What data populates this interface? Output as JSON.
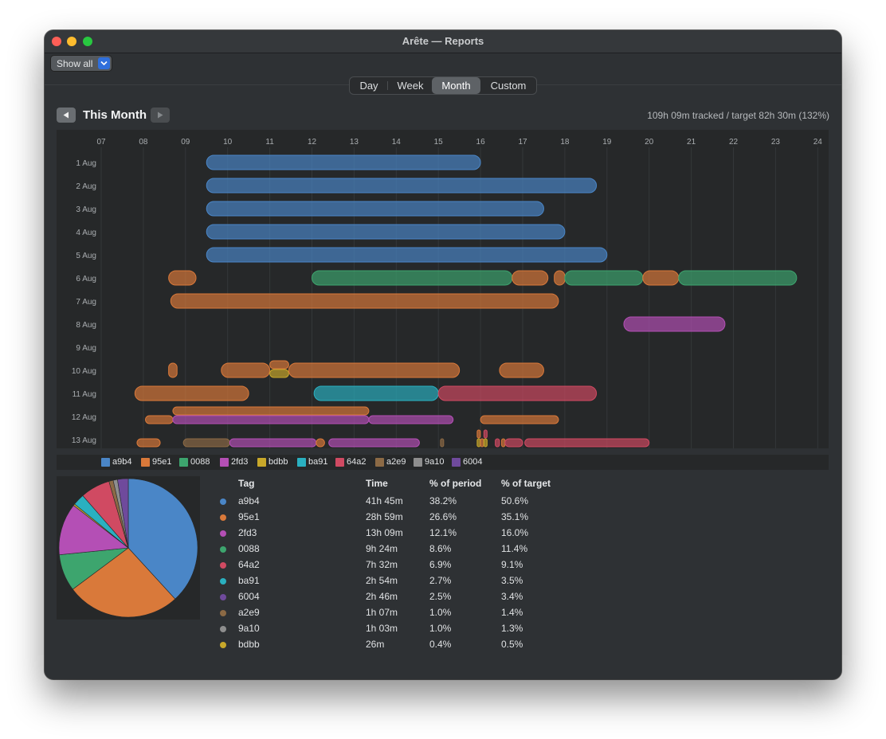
{
  "window": {
    "title": "Arête — Reports"
  },
  "toolbar": {
    "filter_label": "Show all"
  },
  "tabs": [
    {
      "label": "Day",
      "selected": false
    },
    {
      "label": "Week",
      "selected": false
    },
    {
      "label": "Month",
      "selected": true
    },
    {
      "label": "Custom",
      "selected": false
    }
  ],
  "period": {
    "title": "This Month",
    "summary": "109h 09m tracked  /  target 82h 30m  (132%)"
  },
  "colors": {
    "a9b4": "#4a86c7",
    "95e1": "#d9793a",
    "0088": "#3da56e",
    "2fd3": "#b44fb5",
    "bdbb": "#c8a82a",
    "ba91": "#2ab0c0",
    "64a2": "#d04a62",
    "a2e9": "#8c6a45",
    "9a10": "#8e8e8e",
    "6004": "#6f4a9c"
  },
  "timeline": {
    "hours": [
      "07",
      "08",
      "09",
      "10",
      "11",
      "12",
      "13",
      "14",
      "15",
      "16",
      "17",
      "18",
      "19",
      "20",
      "21",
      "22",
      "23",
      "24"
    ],
    "hour_start": 7,
    "hour_end": 24,
    "days": [
      "1 Aug",
      "2 Aug",
      "3 Aug",
      "4 Aug",
      "5 Aug",
      "6 Aug",
      "7 Aug",
      "8 Aug",
      "9 Aug",
      "10 Aug",
      "11 Aug",
      "12 Aug",
      "13 Aug"
    ],
    "entries": [
      {
        "day": 0,
        "start": 9.5,
        "end": 16.0,
        "tag": "a9b4"
      },
      {
        "day": 1,
        "start": 9.5,
        "end": 18.75,
        "tag": "a9b4"
      },
      {
        "day": 2,
        "start": 9.5,
        "end": 17.5,
        "tag": "a9b4"
      },
      {
        "day": 3,
        "start": 9.5,
        "end": 18.0,
        "tag": "a9b4"
      },
      {
        "day": 4,
        "start": 9.5,
        "end": 19.0,
        "tag": "a9b4"
      },
      {
        "day": 5,
        "start": 8.6,
        "end": 9.25,
        "tag": "95e1"
      },
      {
        "day": 5,
        "start": 12.0,
        "end": 16.75,
        "tag": "0088"
      },
      {
        "day": 5,
        "start": 16.75,
        "end": 17.6,
        "tag": "95e1"
      },
      {
        "day": 5,
        "start": 17.75,
        "end": 18.0,
        "tag": "95e1"
      },
      {
        "day": 5,
        "start": 18.0,
        "end": 19.85,
        "tag": "0088"
      },
      {
        "day": 5,
        "start": 19.85,
        "end": 20.7,
        "tag": "95e1"
      },
      {
        "day": 5,
        "start": 20.7,
        "end": 23.5,
        "tag": "0088"
      },
      {
        "day": 6,
        "start": 8.65,
        "end": 17.85,
        "tag": "95e1"
      },
      {
        "day": 7,
        "start": 19.4,
        "end": 21.8,
        "tag": "2fd3"
      },
      {
        "day": 9,
        "start": 8.6,
        "end": 8.8,
        "tag": "95e1"
      },
      {
        "day": 9,
        "start": 9.85,
        "end": 11.0,
        "tag": "95e1"
      },
      {
        "day": 9,
        "start": 11.0,
        "end": 11.45,
        "tag": "95e1",
        "lane": "top"
      },
      {
        "day": 9,
        "start": 11.0,
        "end": 11.45,
        "tag": "bdbb",
        "lane": "bottom"
      },
      {
        "day": 9,
        "start": 11.45,
        "end": 15.5,
        "tag": "95e1"
      },
      {
        "day": 9,
        "start": 16.45,
        "end": 17.5,
        "tag": "95e1"
      },
      {
        "day": 10,
        "start": 7.8,
        "end": 10.5,
        "tag": "95e1"
      },
      {
        "day": 10,
        "start": 12.05,
        "end": 15.0,
        "tag": "ba91"
      },
      {
        "day": 10,
        "start": 15.0,
        "end": 18.75,
        "tag": "64a2"
      },
      {
        "day": 11,
        "start": 8.7,
        "end": 13.35,
        "tag": "95e1",
        "lane": "top"
      },
      {
        "day": 11,
        "start": 8.05,
        "end": 8.7,
        "tag": "95e1",
        "lane": "bottom"
      },
      {
        "day": 11,
        "start": 8.7,
        "end": 13.35,
        "tag": "2fd3",
        "lane": "bottom"
      },
      {
        "day": 11,
        "start": 13.35,
        "end": 15.35,
        "tag": "2fd3",
        "lane": "bottom"
      },
      {
        "day": 11,
        "start": 16.0,
        "end": 17.85,
        "tag": "95e1",
        "lane": "bottom"
      },
      {
        "day": 12,
        "start": 7.85,
        "end": 8.4,
        "tag": "95e1",
        "lane": "bottom"
      },
      {
        "day": 12,
        "start": 8.95,
        "end": 10.05,
        "tag": "a2e9",
        "lane": "bottom"
      },
      {
        "day": 12,
        "start": 10.05,
        "end": 12.1,
        "tag": "2fd3",
        "lane": "bottom"
      },
      {
        "day": 12,
        "start": 12.1,
        "end": 12.3,
        "tag": "95e1",
        "lane": "bottom"
      },
      {
        "day": 12,
        "start": 12.4,
        "end": 14.55,
        "tag": "2fd3",
        "lane": "bottom"
      },
      {
        "day": 12,
        "start": 15.05,
        "end": 15.12,
        "tag": "a2e9",
        "lane": "bottom"
      },
      {
        "day": 12,
        "start": 15.92,
        "end": 15.97,
        "tag": "95e1",
        "lane": "top"
      },
      {
        "day": 12,
        "start": 16.08,
        "end": 16.13,
        "tag": "64a2",
        "lane": "top"
      },
      {
        "day": 12,
        "start": 15.92,
        "end": 15.97,
        "tag": "bdbb",
        "lane": "bottom"
      },
      {
        "day": 12,
        "start": 16.0,
        "end": 16.05,
        "tag": "95e1",
        "lane": "bottom"
      },
      {
        "day": 12,
        "start": 16.08,
        "end": 16.15,
        "tag": "bdbb",
        "lane": "bottom"
      },
      {
        "day": 12,
        "start": 16.35,
        "end": 16.45,
        "tag": "64a2",
        "lane": "bottom"
      },
      {
        "day": 12,
        "start": 16.5,
        "end": 16.58,
        "tag": "95e1",
        "lane": "bottom"
      },
      {
        "day": 12,
        "start": 16.58,
        "end": 17.0,
        "tag": "64a2",
        "lane": "bottom"
      },
      {
        "day": 12,
        "start": 17.05,
        "end": 20.0,
        "tag": "64a2",
        "lane": "bottom"
      }
    ]
  },
  "legend": [
    {
      "tag": "a9b4"
    },
    {
      "tag": "95e1"
    },
    {
      "tag": "0088"
    },
    {
      "tag": "2fd3"
    },
    {
      "tag": "bdbb"
    },
    {
      "tag": "ba91"
    },
    {
      "tag": "64a2"
    },
    {
      "tag": "a2e9"
    },
    {
      "tag": "9a10"
    },
    {
      "tag": "6004"
    }
  ],
  "chart_data": {
    "type": "pie",
    "slices": [
      {
        "label": "a9b4",
        "value": 38.2
      },
      {
        "label": "95e1",
        "value": 26.6
      },
      {
        "label": "0088",
        "value": 8.6
      },
      {
        "label": "2fd3",
        "value": 12.1
      },
      {
        "label": "bdbb",
        "value": 0.4
      },
      {
        "label": "ba91",
        "value": 2.7
      },
      {
        "label": "64a2",
        "value": 6.9
      },
      {
        "label": "a2e9",
        "value": 1.0
      },
      {
        "label": "9a10",
        "value": 1.0
      },
      {
        "label": "6004",
        "value": 2.5
      }
    ]
  },
  "table": {
    "headers": {
      "tag": "Tag",
      "time": "Time",
      "pct_period": "% of period",
      "pct_target": "% of target"
    },
    "rows": [
      {
        "tag": "a9b4",
        "time": "41h 45m",
        "pct_period": "38.2%",
        "pct_target": "50.6%"
      },
      {
        "tag": "95e1",
        "time": "28h 59m",
        "pct_period": "26.6%",
        "pct_target": "35.1%"
      },
      {
        "tag": "2fd3",
        "time": "13h 09m",
        "pct_period": "12.1%",
        "pct_target": "16.0%"
      },
      {
        "tag": "0088",
        "time": "9h 24m",
        "pct_period": "8.6%",
        "pct_target": "11.4%"
      },
      {
        "tag": "64a2",
        "time": "7h 32m",
        "pct_period": "6.9%",
        "pct_target": "9.1%"
      },
      {
        "tag": "ba91",
        "time": "2h 54m",
        "pct_period": "2.7%",
        "pct_target": "3.5%"
      },
      {
        "tag": "6004",
        "time": "2h 46m",
        "pct_period": "2.5%",
        "pct_target": "3.4%"
      },
      {
        "tag": "a2e9",
        "time": "1h 07m",
        "pct_period": "1.0%",
        "pct_target": "1.4%"
      },
      {
        "tag": "9a10",
        "time": "1h 03m",
        "pct_period": "1.0%",
        "pct_target": "1.3%"
      },
      {
        "tag": "bdbb",
        "time": "26m",
        "pct_period": "0.4%",
        "pct_target": "0.5%"
      }
    ]
  }
}
